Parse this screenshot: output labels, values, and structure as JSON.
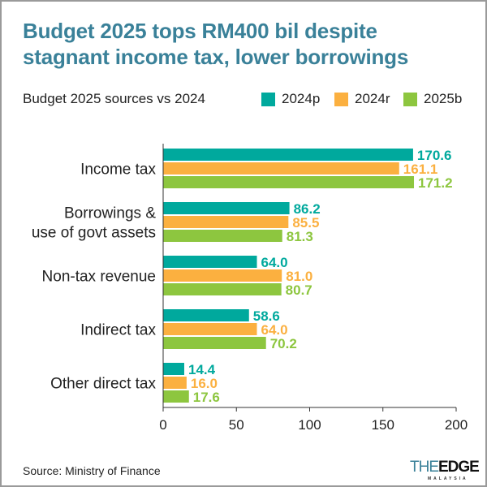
{
  "title_line1": "Budget 2025 tops RM400 bil despite",
  "title_line2": "stagnant income tax, lower borrowings",
  "subtitle": "Budget 2025 sources vs 2024",
  "source": "Source: Ministry of Finance",
  "logo": {
    "part1": "THE",
    "part2": "EDGE",
    "sub": "MALAYSIA"
  },
  "chart_data": {
    "type": "bar",
    "orientation": "horizontal",
    "categories": [
      [
        "Income tax"
      ],
      [
        "Borrowings &",
        "use of govt assets"
      ],
      [
        "Non-tax revenue"
      ],
      [
        "Indirect tax"
      ],
      [
        "Other direct tax"
      ]
    ],
    "series": [
      {
        "name": "2024p",
        "color": "#00a99d",
        "values": [
          170.6,
          86.2,
          64.0,
          58.6,
          14.4
        ]
      },
      {
        "name": "2024r",
        "color": "#fbb040",
        "values": [
          161.1,
          85.5,
          81.0,
          64.0,
          16.0
        ]
      },
      {
        "name": "2025b",
        "color": "#8dc63f",
        "values": [
          171.2,
          81.3,
          80.7,
          70.2,
          17.6
        ]
      }
    ],
    "xlim": [
      0,
      200
    ],
    "xticks": [
      0,
      50,
      100,
      150,
      200
    ],
    "grid": false,
    "legend": "top-right",
    "data_labels": true
  }
}
